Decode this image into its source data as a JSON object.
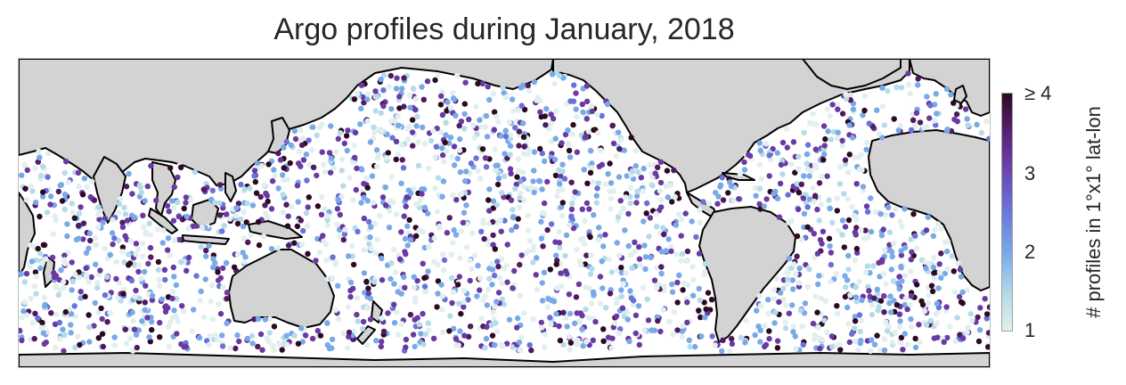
{
  "title": "Argo profiles during January, 2018",
  "colorbar": {
    "label": "# profiles in 1°x1° lat-lon",
    "ticks": [
      "1",
      "2",
      "3",
      "≥ 4"
    ],
    "range": [
      1,
      4
    ],
    "colors": [
      "#e2efee",
      "#b5dce8",
      "#79a9e8",
      "#6a71d8",
      "#6a3aa3",
      "#4f1a5f",
      "#2c0a22"
    ]
  },
  "map": {
    "projection": "equirectangular, centered on Pacific",
    "land_color": "#d3d3d3",
    "coastline_color": "#000000",
    "ocean_color": "#ffffff"
  }
}
